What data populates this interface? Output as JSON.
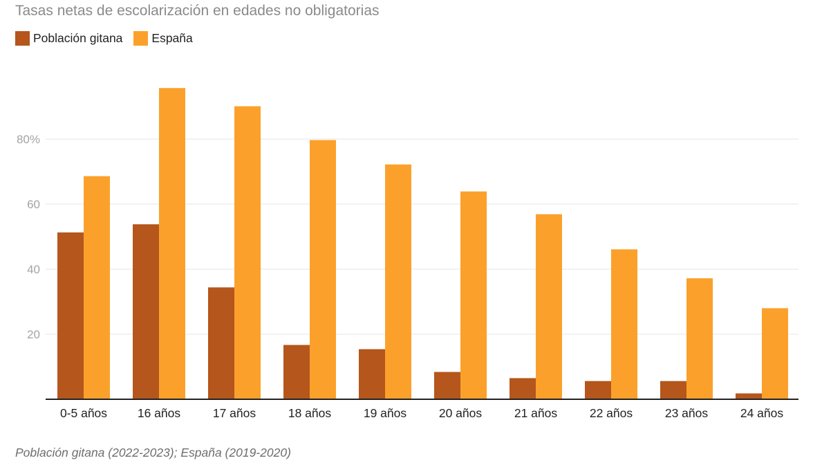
{
  "chart_data": {
    "type": "bar",
    "title": "Tasas netas de escolarización en edades no obligatorias",
    "categories": [
      "0-5 años",
      "16 años",
      "17 años",
      "18 años",
      "19 años",
      "20 años",
      "21 años",
      "22 años",
      "23 años",
      "24 años"
    ],
    "series": [
      {
        "name": "Población gitana",
        "color": "#b5561c",
        "values": [
          51.3,
          53.8,
          34.4,
          16.7,
          15.4,
          8.4,
          6.5,
          5.6,
          5.6,
          1.8
        ]
      },
      {
        "name": "España",
        "color": "#fba12b",
        "values": [
          68.6,
          95.7,
          90.1,
          79.7,
          72.2,
          63.9,
          56.9,
          46.1,
          37.2,
          28.0
        ]
      }
    ],
    "ylim": [
      0,
      100
    ],
    "yticks": [
      20,
      40,
      60,
      80
    ],
    "ytick_labels": [
      "20",
      "40",
      "60",
      "80%"
    ],
    "xlabel": "",
    "ylabel": "",
    "grid": true,
    "legend_position": "top-left",
    "footnote": "Población gitana (2022-2023); España (2019-2020)"
  }
}
